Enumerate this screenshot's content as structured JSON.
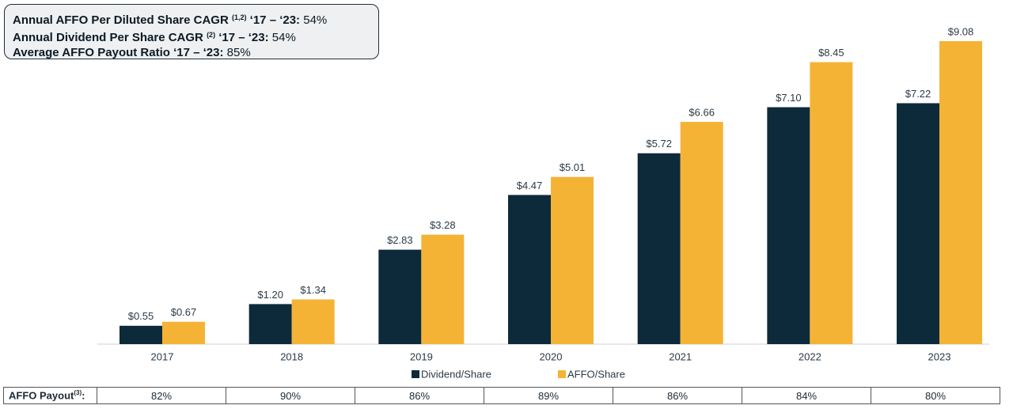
{
  "chart_data": {
    "type": "bar",
    "callout": [
      {
        "label": "Annual AFFO Per Diluted Share CAGR",
        "note": "(1,2)",
        "period": "‘17 – ‘23:",
        "value": "54%"
      },
      {
        "label": "Annual Dividend Per Share CAGR",
        "note": "(2)",
        "period": "‘17 – ‘23:",
        "value": "54%"
      },
      {
        "label": "Average AFFO Payout Ratio",
        "period": "‘17 – ‘23:",
        "value": "85%"
      }
    ],
    "categories": [
      "2017",
      "2018",
      "2019",
      "2020",
      "2021",
      "2022",
      "2023"
    ],
    "series": [
      {
        "name": "Dividend/Share",
        "color": "#0d2a3a",
        "values": [
          0.55,
          1.2,
          2.83,
          4.47,
          5.72,
          7.1,
          7.22
        ],
        "value_labels": [
          "$0.55",
          "$1.20",
          "$2.83",
          "$4.47",
          "$5.72",
          "$7.10",
          "$7.22"
        ]
      },
      {
        "name": "AFFO/Share",
        "color": "#f5b335",
        "values": [
          0.67,
          1.34,
          3.28,
          5.01,
          6.66,
          8.45,
          9.08
        ],
        "value_labels": [
          "$0.67",
          "$1.34",
          "$3.28",
          "$5.01",
          "$6.66",
          "$8.45",
          "$9.08"
        ]
      }
    ],
    "payout_label": "AFFO Payout",
    "payout_note": "(3)",
    "payout_suffix": ":",
    "payout": [
      "82%",
      "90%",
      "86%",
      "89%",
      "86%",
      "84%",
      "80%"
    ]
  }
}
